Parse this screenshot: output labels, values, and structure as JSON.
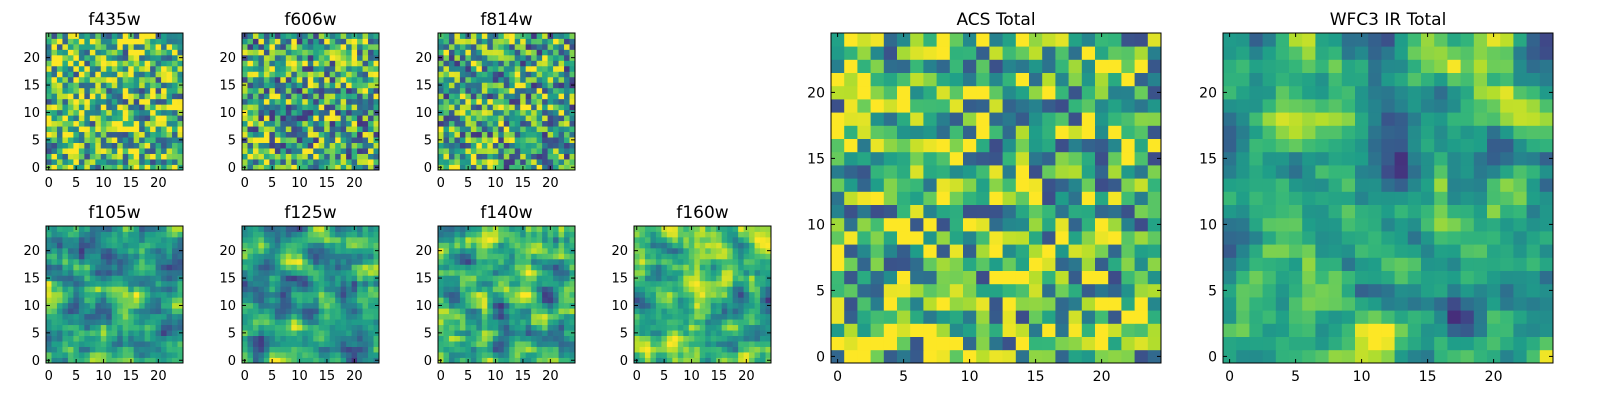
{
  "chart_data": [
    {
      "type": "heatmap",
      "title": "f435w",
      "grid_size": 25,
      "colormap": "viridis",
      "xticks": [
        0,
        5,
        10,
        15,
        20
      ],
      "yticks": [
        0,
        5,
        10,
        15,
        20
      ],
      "xlim": [
        -0.5,
        24.5
      ],
      "ylim": [
        -0.5,
        24.5
      ]
    },
    {
      "type": "heatmap",
      "title": "f606w",
      "grid_size": 25,
      "colormap": "viridis",
      "xticks": [
        0,
        5,
        10,
        15,
        20
      ],
      "yticks": [
        0,
        5,
        10,
        15,
        20
      ],
      "xlim": [
        -0.5,
        24.5
      ],
      "ylim": [
        -0.5,
        24.5
      ]
    },
    {
      "type": "heatmap",
      "title": "f814w",
      "grid_size": 25,
      "colormap": "viridis",
      "xticks": [
        0,
        5,
        10,
        15,
        20
      ],
      "yticks": [
        0,
        5,
        10,
        15,
        20
      ],
      "xlim": [
        -0.5,
        24.5
      ],
      "ylim": [
        -0.5,
        24.5
      ]
    },
    {
      "type": "heatmap",
      "title": "f105w",
      "grid_size": 25,
      "colormap": "viridis",
      "xticks": [
        0,
        5,
        10,
        15,
        20
      ],
      "yticks": [
        0,
        5,
        10,
        15,
        20
      ],
      "xlim": [
        -0.5,
        24.5
      ],
      "ylim": [
        -0.5,
        24.5
      ]
    },
    {
      "type": "heatmap",
      "title": "f125w",
      "grid_size": 25,
      "colormap": "viridis",
      "xticks": [
        0,
        5,
        10,
        15,
        20
      ],
      "yticks": [
        0,
        5,
        10,
        15,
        20
      ],
      "xlim": [
        -0.5,
        24.5
      ],
      "ylim": [
        -0.5,
        24.5
      ]
    },
    {
      "type": "heatmap",
      "title": "f140w",
      "grid_size": 25,
      "colormap": "viridis",
      "xticks": [
        0,
        5,
        10,
        15,
        20
      ],
      "yticks": [
        0,
        5,
        10,
        15,
        20
      ],
      "xlim": [
        -0.5,
        24.5
      ],
      "ylim": [
        -0.5,
        24.5
      ]
    },
    {
      "type": "heatmap",
      "title": "f160w",
      "grid_size": 25,
      "colormap": "viridis",
      "xticks": [
        0,
        5,
        10,
        15,
        20
      ],
      "yticks": [
        0,
        5,
        10,
        15,
        20
      ],
      "xlim": [
        -0.5,
        24.5
      ],
      "ylim": [
        -0.5,
        24.5
      ]
    },
    {
      "type": "heatmap",
      "title": "ACS Total",
      "grid_size": 25,
      "colormap": "viridis",
      "xticks": [
        0,
        5,
        10,
        15,
        20
      ],
      "yticks": [
        0,
        5,
        10,
        15,
        20
      ],
      "xlim": [
        -0.5,
        24.5
      ],
      "ylim": [
        -0.5,
        24.5
      ]
    },
    {
      "type": "heatmap",
      "title": "WFC3 IR Total",
      "grid_size": 25,
      "colormap": "viridis",
      "xticks": [
        0,
        5,
        10,
        15,
        20
      ],
      "yticks": [
        0,
        5,
        10,
        15,
        20
      ],
      "xlim": [
        -0.5,
        24.5
      ],
      "ylim": [
        -0.5,
        24.5
      ]
    }
  ]
}
